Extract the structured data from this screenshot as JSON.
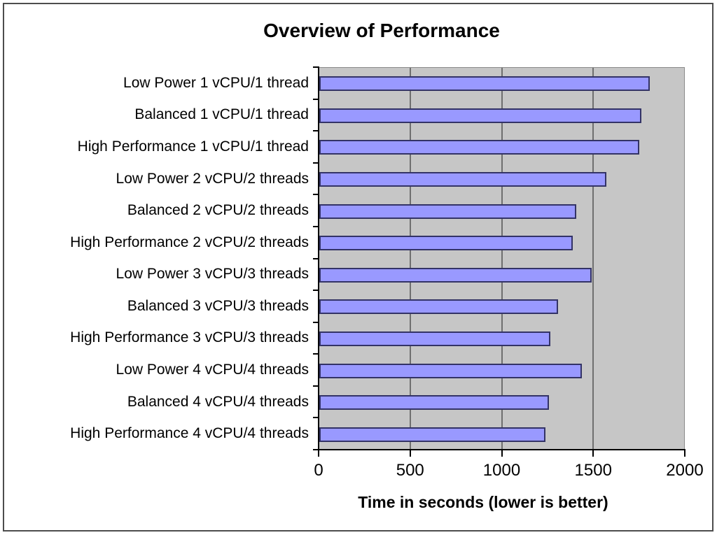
{
  "chart_title": "Overview of Performance",
  "chart_data": {
    "type": "bar",
    "orientation": "horizontal",
    "title": "Overview of Performance",
    "xlabel": "Time in seconds (lower is better)",
    "ylabel": "",
    "categories": [
      "Low Power 1 vCPU/1 thread",
      "Balanced 1 vCPU/1 thread",
      "High Performance 1 vCPU/1 thread",
      "Low Power 2 vCPU/2 threads",
      "Balanced 2 vCPU/2 threads",
      "High Performance 2 vCPU/2 threads",
      "Low Power 3 vCPU/3 threads",
      "Balanced 3 vCPU/3 threads",
      "High Performance 3 vCPU/3 threads",
      "Low Power 4 vCPU/4 threads",
      "Balanced 4 vCPU/4 threads",
      "High Performance 4 vCPU/4 threads"
    ],
    "values": [
      1810,
      1765,
      1755,
      1575,
      1410,
      1390,
      1495,
      1310,
      1265,
      1440,
      1260,
      1240
    ],
    "xlim": [
      0,
      2000
    ],
    "xticks": [
      0,
      500,
      1000,
      1500,
      2000
    ],
    "xtick_labels": [
      "0",
      "500",
      "1000",
      "1500",
      "2000"
    ],
    "grid": true,
    "legend": "none",
    "colors": {
      "bar_fill": "#9999ff",
      "bar_border": "#333366",
      "plot_background": "#c6c6c6",
      "gridline": "#6f6f6f",
      "axis": "#000000",
      "frame_border": "#4d4d4d",
      "chart_background": "#ffffff"
    }
  }
}
